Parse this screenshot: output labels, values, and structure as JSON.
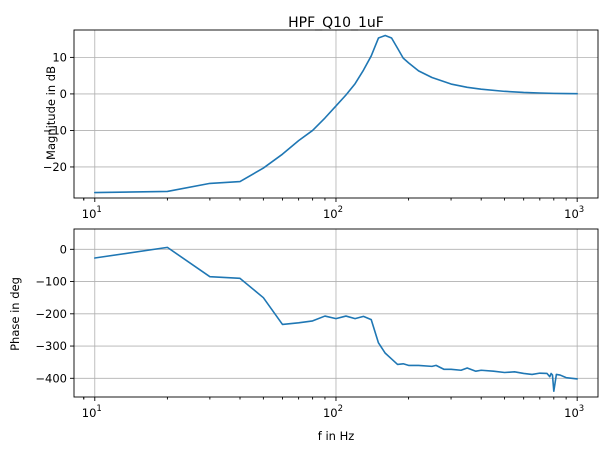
{
  "chart_data": [
    {
      "type": "line",
      "title": "HPF_Q10_1uF",
      "xlabel": "",
      "ylabel": "Magnitude in dB",
      "xscale": "log",
      "xlim": [
        8.2,
        1220
      ],
      "ylim": [
        -28.5,
        17.5
      ],
      "grid": true,
      "x_ticks": [
        {
          "value": 10,
          "label": "10",
          "sup": "1"
        },
        {
          "value": 100,
          "label": "10",
          "sup": "2"
        },
        {
          "value": 1000,
          "label": "10",
          "sup": "3"
        }
      ],
      "y_ticks": [
        {
          "value": 10,
          "label": "10"
        },
        {
          "value": 0,
          "label": "0"
        },
        {
          "value": -10,
          "label": "−10"
        },
        {
          "value": -20,
          "label": "−20"
        }
      ],
      "color": "#1f77b4",
      "series": [
        {
          "x": [
            10,
            20,
            30,
            40,
            50,
            60,
            70,
            80,
            90,
            100,
            110,
            120,
            130,
            140,
            150,
            160,
            170,
            180,
            190,
            200,
            220,
            250,
            300,
            350,
            400,
            500,
            600,
            700,
            800,
            900,
            1000
          ],
          "y": [
            -27,
            -26.7,
            -24.5,
            -24,
            -20.3,
            -16.5,
            -12.8,
            -10,
            -6.6,
            -3.3,
            -0.3,
            2.8,
            6.5,
            10.4,
            15.3,
            16,
            15.3,
            12.5,
            9.8,
            8.5,
            6.3,
            4.5,
            2.7,
            1.8,
            1.3,
            0.7,
            0.4,
            0.25,
            0.15,
            0.1,
            0.05
          ]
        }
      ]
    },
    {
      "type": "line",
      "title": "",
      "xlabel": "f in Hz",
      "ylabel": "Phase in deg",
      "xscale": "log",
      "xlim": [
        8.2,
        1220
      ],
      "ylim": [
        -458,
        63
      ],
      "grid": true,
      "x_ticks": [
        {
          "value": 10,
          "label": "10",
          "sup": "1"
        },
        {
          "value": 100,
          "label": "10",
          "sup": "2"
        },
        {
          "value": 1000,
          "label": "10",
          "sup": "3"
        }
      ],
      "y_ticks": [
        {
          "value": 0,
          "label": "0"
        },
        {
          "value": -100,
          "label": "−100"
        },
        {
          "value": -200,
          "label": "−200"
        },
        {
          "value": -300,
          "label": "−300"
        },
        {
          "value": -400,
          "label": "−400"
        }
      ],
      "color": "#1f77b4",
      "series": [
        {
          "x": [
            10,
            20,
            30,
            40,
            50,
            60,
            70,
            80,
            90,
            100,
            110,
            120,
            130,
            140,
            150,
            160,
            170,
            180,
            190,
            200,
            220,
            250,
            260,
            280,
            300,
            330,
            350,
            380,
            400,
            450,
            500,
            550,
            600,
            650,
            700,
            750,
            770,
            780,
            790,
            800,
            820,
            850,
            900,
            950,
            1000
          ],
          "y": [
            -27,
            6,
            -85,
            -90,
            -150,
            -233,
            -228,
            -222,
            -207,
            -215,
            -207,
            -215,
            -208,
            -218,
            -290,
            -322,
            -340,
            -357,
            -355,
            -360,
            -360,
            -363,
            -360,
            -372,
            -372,
            -375,
            -368,
            -378,
            -375,
            -378,
            -382,
            -380,
            -385,
            -388,
            -384,
            -385,
            -395,
            -385,
            -390,
            -440,
            -388,
            -390,
            -398,
            -400,
            -402
          ]
        }
      ]
    }
  ]
}
